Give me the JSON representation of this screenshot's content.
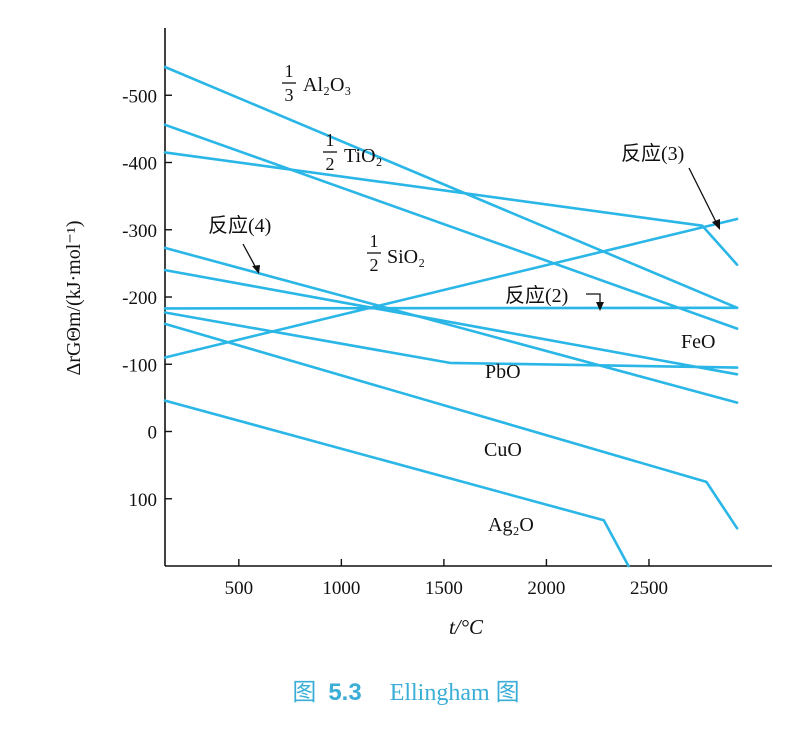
{
  "chart_data": {
    "type": "line",
    "title": "",
    "xlabel": "t/°C",
    "ylabel": "ΔrGΘm/(kJ·mol⁻¹)",
    "xlim": [
      140,
      3100
    ],
    "ylim": [
      200,
      -600
    ],
    "x_ticks": [
      500,
      1000,
      1500,
      2000,
      2500
    ],
    "y_ticks": [
      -500,
      -400,
      -300,
      -200,
      -100,
      0,
      100
    ],
    "grid": false,
    "legend": "none",
    "series": [
      {
        "name": "1/3 Al2O3",
        "points": [
          [
            140,
            -542
          ],
          [
            2930,
            -184
          ]
        ]
      },
      {
        "name": "1/2 TiO2",
        "points": [
          [
            140,
            -456
          ],
          [
            2930,
            -153
          ]
        ]
      },
      {
        "name": "1/2 SiO2",
        "points": [
          [
            140,
            -415
          ],
          [
            2760,
            -306
          ],
          [
            2930,
            -248
          ]
        ]
      },
      {
        "name": "反应(4)",
        "points": [
          [
            140,
            -273
          ],
          [
            2930,
            -43
          ]
        ]
      },
      {
        "name": "FeO",
        "points": [
          [
            140,
            -240
          ],
          [
            2930,
            -85
          ]
        ]
      },
      {
        "name": "反应(2)",
        "points": [
          [
            140,
            -183
          ],
          [
            2930,
            -184
          ]
        ]
      },
      {
        "name": "PbO",
        "points": [
          [
            140,
            -177
          ],
          [
            1530,
            -102
          ],
          [
            2930,
            -95
          ]
        ]
      },
      {
        "name": "反应(3)",
        "points": [
          [
            140,
            -110
          ],
          [
            2930,
            -316
          ]
        ]
      },
      {
        "name": "CuO",
        "points": [
          [
            140,
            -160
          ],
          [
            2780,
            75
          ],
          [
            2930,
            144
          ]
        ]
      },
      {
        "name": "Ag2O",
        "points": [
          [
            140,
            -46
          ],
          [
            2280,
            132
          ],
          [
            2400,
            200
          ]
        ]
      }
    ]
  },
  "labels": {
    "al2o3": {
      "num": "1",
      "den": "3",
      "formula": "Al₂O₃"
    },
    "tio2": {
      "num": "1",
      "den": "2",
      "formula": "TiO₂"
    },
    "sio2": {
      "num": "1",
      "den": "2",
      "formula": "SiO₂"
    },
    "reaction4": "反应(4)",
    "reaction3": "反应(3)",
    "reaction2": "反应(2)",
    "feo": "FeO",
    "pbo": "PbO",
    "cuo": "CuO",
    "ag2o": "Ag₂O"
  },
  "caption": {
    "prefix": "图",
    "number": "5.3",
    "name": "Ellingham 图"
  },
  "colors": {
    "series": "#2ab6e6",
    "caption": "#3aaed6",
    "axis": "#111111"
  }
}
